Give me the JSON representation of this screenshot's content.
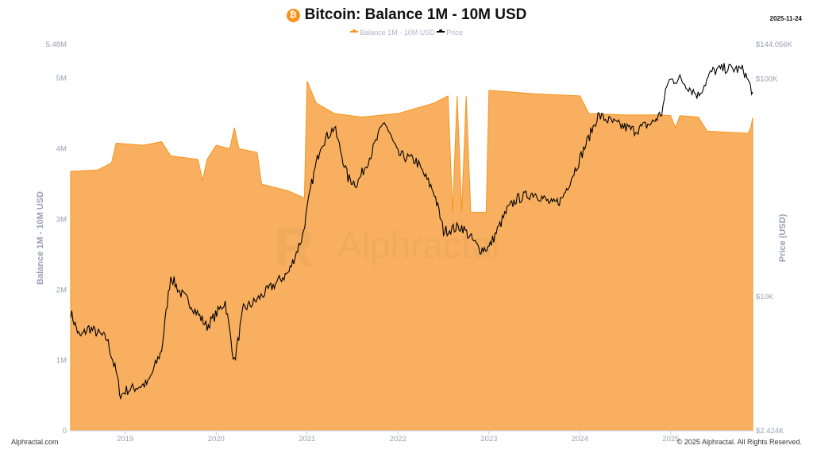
{
  "header": {
    "title": "Bitcoin: Balance 1M - 10M USD",
    "date": "2025-11-24",
    "coin_icon": "bitcoin-icon"
  },
  "footer": {
    "left": "Alphractal.com",
    "right": "© 2025 Alphractal. All Rights Reserved."
  },
  "watermark": "Alphractal",
  "colors": {
    "balance": "#f7931a",
    "balance_fill": "#f8b060",
    "price": "#000000"
  },
  "chart_data": {
    "type": "area+line",
    "title": "Bitcoin: Balance 1M - 10M USD",
    "legend": [
      "Balance 1M - 10M USD",
      "Price"
    ],
    "legend_placement": "top",
    "ylabel": "Balance 1M - 10M USD",
    "y2label": "Price (USD)",
    "ylim": [
      0,
      5480000
    ],
    "y2lim": [
      2424,
      144056
    ],
    "y2scale": "log",
    "xlim": [
      2018.4,
      2025.9
    ],
    "yticks": [
      "0",
      "1M",
      "2M",
      "3M",
      "4M",
      "5M",
      "5.48M"
    ],
    "ytick_values": [
      0,
      1000000,
      2000000,
      3000000,
      4000000,
      5000000,
      5480000
    ],
    "y2ticks": [
      "$2.424K",
      "$10K",
      "$100K",
      "$144.056K"
    ],
    "y2tick_values": [
      2424,
      10000,
      100000,
      144056
    ],
    "xticks": [
      "2019",
      "2020",
      "2021",
      "2022",
      "2023",
      "2024",
      "2025"
    ],
    "grid": false,
    "series": [
      {
        "name": "Balance 1M - 10M USD",
        "type": "area",
        "x": [
          2018.4,
          2018.7,
          2018.85,
          2018.9,
          2019.2,
          2019.4,
          2019.5,
          2019.8,
          2019.85,
          2019.9,
          2020.0,
          2020.15,
          2020.2,
          2020.25,
          2020.45,
          2020.5,
          2020.8,
          2020.97,
          2021.0,
          2021.1,
          2021.3,
          2021.6,
          2022.0,
          2022.4,
          2022.55,
          2022.6,
          2022.65,
          2022.7,
          2022.75,
          2022.8,
          2022.85,
          2022.97,
          2023.0,
          2023.5,
          2024.0,
          2024.1,
          2024.5,
          2024.9,
          2025.0,
          2025.05,
          2025.1,
          2025.3,
          2025.4,
          2025.85,
          2025.88,
          2025.9
        ],
        "values": [
          3680000,
          3700000,
          3800000,
          4080000,
          4050000,
          4100000,
          3900000,
          3850000,
          3550000,
          3850000,
          4050000,
          4000000,
          4300000,
          4000000,
          3950000,
          3500000,
          3400000,
          3300000,
          4960000,
          4650000,
          4500000,
          4450000,
          4500000,
          4650000,
          4750000,
          3100000,
          4750000,
          3100000,
          4750000,
          3100000,
          3100000,
          3100000,
          4830000,
          4780000,
          4750000,
          4500000,
          4480000,
          4480000,
          4470000,
          4300000,
          4470000,
          4450000,
          4250000,
          4220000,
          4300000,
          4440000
        ]
      },
      {
        "name": "Price",
        "type": "line",
        "x": [
          2018.4,
          2018.5,
          2018.6,
          2018.8,
          2018.9,
          2018.95,
          2019.0,
          2019.25,
          2019.4,
          2019.5,
          2019.6,
          2019.7,
          2019.9,
          2020.1,
          2020.2,
          2020.3,
          2020.4,
          2020.6,
          2020.8,
          2020.95,
          2021.05,
          2021.15,
          2021.3,
          2021.45,
          2021.55,
          2021.7,
          2021.85,
          2022.0,
          2022.2,
          2022.4,
          2022.5,
          2022.7,
          2022.9,
          2023.0,
          2023.2,
          2023.3,
          2023.5,
          2023.7,
          2023.8,
          2024.0,
          2024.2,
          2024.4,
          2024.6,
          2024.8,
          2024.9,
          2024.97,
          2025.1,
          2025.3,
          2025.45,
          2025.6,
          2025.8,
          2025.9
        ],
        "values": [
          8500,
          6500,
          7200,
          6400,
          4500,
          3500,
          3700,
          4000,
          5700,
          12500,
          10500,
          9500,
          7300,
          9500,
          5000,
          8800,
          9300,
          11000,
          13000,
          19000,
          33000,
          50000,
          60000,
          35000,
          33000,
          45000,
          64000,
          45000,
          42000,
          30000,
          20000,
          21000,
          16500,
          16800,
          25000,
          28000,
          30000,
          26500,
          28000,
          43000,
          68000,
          62000,
          58000,
          63000,
          70000,
          98000,
          100000,
          84000,
          108000,
          112000,
          110000,
          87000
        ]
      }
    ]
  }
}
